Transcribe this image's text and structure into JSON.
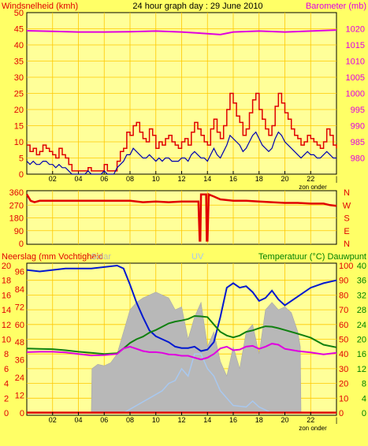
{
  "colors": {
    "background": "#FFFF66",
    "plot_background": "#FFFF99",
    "grid": "#FFC800",
    "wind_gust": "#E00000",
    "wind_avg": "#0000B0",
    "barometer": "#E000E0",
    "direction": "#E00000",
    "rain": "#E00000",
    "humidity": "#0018D0",
    "solar": "#B8B8B8",
    "uv": "#A8C8F0",
    "temperature": "#108010",
    "dewpoint": "#E000E0",
    "left_label": "#E00000",
    "right_label_green": "#008000"
  },
  "chart_data": [
    {
      "type": "line",
      "title": "24 hour graph day : 29 June 2010",
      "ylabel": "Windsnelheid (kmh)",
      "y2label": "Barometer (mb)",
      "ylim": [
        0,
        50
      ],
      "y2lim": [
        975,
        1025
      ],
      "yticks": [
        "0",
        "5",
        "10",
        "15",
        "20",
        "25",
        "30",
        "35",
        "40",
        "45",
        "50"
      ],
      "y2ticks": [
        "980",
        "985",
        "990",
        "995",
        "1000",
        "1005",
        "1010",
        "1015",
        "1020"
      ],
      "xticks": [
        "02",
        "04",
        "06",
        "08",
        "10",
        "12",
        "14",
        "16",
        "18",
        "20",
        "22"
      ],
      "xlabel": "zon onder",
      "grid": true,
      "series": [
        {
          "name": "gust",
          "x": [
            0.0,
            0.25,
            0.5,
            0.75,
            1.0,
            1.25,
            1.5,
            1.75,
            2.0,
            2.25,
            2.5,
            2.75,
            3.0,
            3.25,
            3.5,
            3.75,
            4.0,
            4.25,
            4.5,
            4.75,
            5.0,
            5.25,
            5.5,
            5.75,
            6.0,
            6.25,
            6.5,
            6.75,
            7.0,
            7.25,
            7.5,
            7.75,
            8.0,
            8.25,
            8.5,
            8.75,
            9.0,
            9.25,
            9.5,
            9.75,
            10.0,
            10.25,
            10.5,
            10.75,
            11.0,
            11.25,
            11.5,
            11.75,
            12.0,
            12.25,
            12.5,
            12.75,
            13.0,
            13.25,
            13.5,
            13.75,
            14.0,
            14.25,
            14.5,
            14.75,
            15.0,
            15.25,
            15.5,
            15.75,
            16.0,
            16.25,
            16.5,
            16.75,
            17.0,
            17.25,
            17.5,
            17.75,
            18.0,
            18.25,
            18.5,
            18.75,
            19.0,
            19.25,
            19.5,
            19.75,
            20.0,
            20.25,
            20.5,
            20.75,
            21.0,
            21.25,
            21.5,
            21.75,
            22.0,
            22.25,
            22.5,
            22.75,
            23.0,
            23.25,
            23.5,
            23.75,
            24.0
          ],
          "values": [
            9,
            7,
            8,
            6,
            7,
            9,
            8,
            7,
            6,
            5,
            8,
            6,
            5,
            3,
            1,
            1,
            1,
            1,
            1,
            2,
            1,
            1,
            1,
            1,
            3,
            1,
            1,
            1,
            4,
            7,
            8,
            13,
            12,
            15,
            16,
            13,
            11,
            10,
            14,
            12,
            8,
            10,
            9,
            11,
            12,
            10,
            9,
            8,
            10,
            11,
            9,
            13,
            16,
            14,
            12,
            10,
            9,
            14,
            17,
            13,
            11,
            15,
            20,
            25,
            22,
            18,
            16,
            12,
            14,
            19,
            23,
            25,
            20,
            17,
            14,
            12,
            15,
            21,
            25,
            22,
            19,
            17,
            14,
            12,
            11,
            9,
            10,
            12,
            11,
            10,
            9,
            8,
            10,
            14,
            12,
            9,
            8
          ]
        },
        {
          "name": "avg",
          "x": [
            0.0,
            0.25,
            0.5,
            0.75,
            1.0,
            1.25,
            1.5,
            1.75,
            2.0,
            2.25,
            2.5,
            2.75,
            3.0,
            3.25,
            3.5,
            3.75,
            4.0,
            4.25,
            4.5,
            4.75,
            5.0,
            5.25,
            5.5,
            5.75,
            6.0,
            6.25,
            6.5,
            6.75,
            7.0,
            7.25,
            7.5,
            7.75,
            8.0,
            8.25,
            8.5,
            8.75,
            9.0,
            9.25,
            9.5,
            9.75,
            10.0,
            10.25,
            10.5,
            10.75,
            11.0,
            11.25,
            11.5,
            11.75,
            12.0,
            12.25,
            12.5,
            12.75,
            13.0,
            13.25,
            13.5,
            13.75,
            14.0,
            14.25,
            14.5,
            14.75,
            15.0,
            15.25,
            15.5,
            15.75,
            16.0,
            16.25,
            16.5,
            16.75,
            17.0,
            17.25,
            17.5,
            17.75,
            18.0,
            18.25,
            18.5,
            18.75,
            19.0,
            19.25,
            19.5,
            19.75,
            20.0,
            20.25,
            20.5,
            20.75,
            21.0,
            21.25,
            21.5,
            21.75,
            22.0,
            22.25,
            22.5,
            22.75,
            23.0,
            23.25,
            23.5,
            23.75,
            24.0
          ],
          "values": [
            4,
            3,
            4,
            3,
            3,
            4,
            4,
            3,
            3,
            2,
            3,
            2,
            2,
            1,
            0,
            0,
            0,
            0,
            0,
            1,
            0,
            0,
            0,
            0,
            1,
            0,
            0,
            0,
            2,
            3,
            4,
            6,
            6,
            8,
            7,
            6,
            5,
            5,
            6,
            5,
            4,
            5,
            4,
            5,
            5,
            4,
            4,
            4,
            5,
            5,
            4,
            6,
            7,
            6,
            5,
            5,
            4,
            6,
            8,
            6,
            5,
            7,
            9,
            12,
            11,
            10,
            9,
            7,
            8,
            10,
            12,
            13,
            11,
            9,
            8,
            7,
            8,
            11,
            13,
            12,
            10,
            9,
            8,
            7,
            6,
            5,
            6,
            7,
            6,
            6,
            5,
            5,
            6,
            7,
            6,
            5,
            5
          ]
        },
        {
          "name": "barometer",
          "x": [
            0,
            2,
            4,
            6,
            8,
            10,
            12,
            14,
            15,
            16,
            18,
            20,
            22,
            24
          ],
          "values": [
            1019.4,
            1019.2,
            1019.0,
            1019.0,
            1019.1,
            1019.3,
            1019.0,
            1018.5,
            1018.2,
            1019.0,
            1019.3,
            1019.0,
            1019.3,
            1019.6
          ]
        }
      ]
    },
    {
      "type": "line",
      "title": "",
      "yticks": [
        "360",
        "270",
        "180",
        "90",
        "0"
      ],
      "y2ticks": [
        "N",
        "W",
        "S",
        "E",
        "N"
      ],
      "ylim": [
        0,
        360
      ],
      "xlabel": "",
      "grid": true,
      "series": [
        {
          "name": "direction",
          "x": [
            0,
            0.3,
            0.6,
            1,
            2,
            3,
            4,
            5,
            6,
            7,
            8,
            9,
            10,
            11,
            12,
            13,
            13.3,
            13.4,
            13.45,
            13.5,
            13.9,
            13.95,
            14.0,
            14.1,
            14.5,
            15,
            16,
            17,
            18,
            19,
            20,
            21,
            22,
            23,
            23.5,
            24
          ],
          "values": [
            345,
            300,
            290,
            300,
            300,
            300,
            300,
            300,
            300,
            300,
            300,
            290,
            295,
            290,
            295,
            295,
            295,
            20,
            20,
            345,
            345,
            20,
            20,
            345,
            330,
            310,
            300,
            300,
            295,
            290,
            285,
            285,
            280,
            280,
            270,
            265
          ]
        }
      ]
    },
    {
      "type": "line",
      "ylabel": "Neerslag (mm Vochtigheid",
      "y2label": "Temperatuur (°C) Dauwpunt",
      "legend": [
        "Solar",
        "UV"
      ],
      "yticks": [
        "0",
        "2",
        "4",
        "6",
        "8",
        "10",
        "12",
        "14",
        "16",
        "18",
        "20"
      ],
      "humidity_ticks": [
        "0",
        "10",
        "20",
        "30",
        "40",
        "50",
        "60",
        "70",
        "80",
        "90",
        "100"
      ],
      "temp_ticks": [
        "0",
        "4",
        "8",
        "12",
        "16",
        "20",
        "24",
        "28",
        "32",
        "36",
        "40"
      ],
      "left_values_ticks": [
        "0",
        "12",
        "24",
        "36",
        "48",
        "60",
        "72",
        "84",
        "96"
      ],
      "ylim": [
        0,
        100
      ],
      "y2lim": [
        0,
        40
      ],
      "xticks": [
        "02",
        "04",
        "06",
        "08",
        "10",
        "12",
        "14",
        "16",
        "18",
        "20",
        "22"
      ],
      "xlabel": "zon onder",
      "grid": true,
      "series": [
        {
          "name": "humidity",
          "x": [
            0,
            1,
            2,
            3,
            4,
            5,
            6,
            7,
            7.5,
            8,
            8.5,
            9,
            9.5,
            10,
            10.5,
            11,
            11.5,
            12,
            12.5,
            13,
            13.5,
            14,
            14.5,
            15,
            15.5,
            16,
            16.5,
            17,
            17.5,
            18,
            18.5,
            19,
            19.5,
            20,
            21,
            22,
            23,
            24
          ],
          "values": [
            97,
            96,
            97,
            98,
            98,
            98,
            99,
            100,
            98,
            87,
            75,
            65,
            56,
            52,
            50,
            48,
            45,
            44,
            44,
            45,
            42,
            43,
            48,
            65,
            85,
            88,
            85,
            86,
            82,
            76,
            78,
            83,
            77,
            73,
            79,
            85,
            88,
            90
          ]
        },
        {
          "name": "solar",
          "x": [
            0,
            5,
            5.05,
            5.5,
            6,
            6.5,
            7,
            7.5,
            8,
            8.5,
            9,
            9.5,
            10,
            10.5,
            11,
            11.5,
            12,
            12.5,
            13,
            13.5,
            14,
            14.5,
            15,
            15.5,
            16,
            16.5,
            17,
            17.5,
            18,
            18.5,
            19,
            19.5,
            20,
            20.5,
            21,
            21.2,
            21.25,
            24
          ],
          "values": [
            0,
            0,
            30,
            33,
            32,
            34,
            40,
            55,
            70,
            75,
            78,
            80,
            82,
            80,
            78,
            70,
            72,
            50,
            65,
            75,
            45,
            55,
            35,
            25,
            45,
            30,
            55,
            60,
            40,
            70,
            75,
            70,
            72,
            68,
            55,
            45,
            0,
            0
          ]
        },
        {
          "name": "uv",
          "x": [
            0,
            7.5,
            8.5,
            9.5,
            10.5,
            11,
            11.5,
            12,
            12.5,
            13,
            13.5,
            14,
            14.5,
            15,
            15.5,
            16,
            17,
            17.5,
            18,
            18.5,
            19,
            20,
            24
          ],
          "values": [
            0,
            0,
            5,
            10,
            15,
            20,
            22,
            30,
            25,
            40,
            40,
            30,
            25,
            15,
            10,
            5,
            4,
            8,
            4,
            2,
            0,
            0,
            0
          ]
        },
        {
          "name": "temperature",
          "x": [
            0,
            1,
            2,
            3,
            4,
            5,
            6,
            7,
            7.5,
            8,
            8.5,
            9,
            9.5,
            10,
            10.5,
            11,
            11.5,
            12,
            12.5,
            13,
            13.5,
            14,
            14.5,
            15,
            15.5,
            16,
            16.5,
            17,
            17.5,
            18,
            18.5,
            19,
            19.5,
            20,
            21,
            22,
            23,
            24
          ],
          "values": [
            17.5,
            17.4,
            17.3,
            17.0,
            16.6,
            16.3,
            16.0,
            16.2,
            17.5,
            19.0,
            20.0,
            20.7,
            21.8,
            22.5,
            23.4,
            24.3,
            24.8,
            25.1,
            25.5,
            26.3,
            26.2,
            26.0,
            24.0,
            22.0,
            21.0,
            20.5,
            21.0,
            22.0,
            22.4,
            23.0,
            23.5,
            23.4,
            23.0,
            22.5,
            21.5,
            20.4,
            18.5,
            17.8
          ]
        },
        {
          "name": "dewpoint",
          "x": [
            0,
            1,
            2,
            3,
            4,
            5,
            6,
            7,
            7.5,
            8,
            8.5,
            9,
            9.5,
            10,
            10.5,
            11,
            11.5,
            12,
            12.5,
            13,
            13.5,
            14,
            14.5,
            15,
            15.5,
            16,
            16.5,
            17,
            17.5,
            18,
            18.5,
            19,
            19.5,
            20,
            21,
            22,
            23,
            24
          ],
          "values": [
            16.5,
            16.6,
            16.6,
            16.4,
            16.0,
            15.6,
            15.7,
            16.0,
            17.5,
            18.0,
            17.4,
            16.8,
            16.5,
            16.5,
            16.3,
            15.9,
            15.8,
            15.5,
            15.5,
            15.0,
            14.5,
            15.0,
            16.0,
            17.5,
            18.0,
            17.0,
            17.2,
            18.0,
            18.2,
            17.4,
            18.0,
            18.8,
            18.5,
            17.4,
            16.8,
            16.4,
            15.9,
            16.3
          ]
        },
        {
          "name": "rain",
          "x": [
            0,
            24
          ],
          "values": [
            0.2,
            0.2
          ]
        }
      ]
    }
  ]
}
